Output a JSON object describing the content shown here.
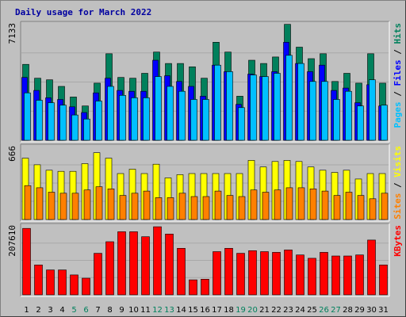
{
  "title": "Daily usage for March 2022",
  "colors": {
    "hits": "#00805c",
    "files": "#0000ff",
    "pages": "#00c0ff",
    "visits": "#ffff00",
    "sites": "#ff8000",
    "kbytes": "#ff0000",
    "weekend_label": "#00805c",
    "weekday_label": "#000000"
  },
  "chart_data": [
    {
      "type": "bar",
      "title": "Daily usage for March 2022",
      "ylabel": "7133",
      "ymax": 7133,
      "right_labels": [
        "Pages",
        "Files",
        "Hits"
      ],
      "categories": [
        "1",
        "2",
        "3",
        "4",
        "5",
        "6",
        "7",
        "8",
        "9",
        "10",
        "11",
        "12",
        "13",
        "14",
        "15",
        "16",
        "17",
        "18",
        "19",
        "20",
        "21",
        "22",
        "23",
        "24",
        "25",
        "26",
        "27",
        "28",
        "29",
        "30",
        "31"
      ],
      "weekend_days": [
        "5",
        "6",
        "12",
        "13",
        "19",
        "20",
        "26",
        "27"
      ],
      "series": [
        {
          "name": "Hits",
          "values": [
            4650,
            3800,
            3700,
            3300,
            2650,
            2100,
            3500,
            5300,
            3850,
            3800,
            4100,
            5400,
            4700,
            4700,
            4500,
            3800,
            6000,
            5400,
            2700,
            4900,
            4700,
            5100,
            7100,
            5700,
            5000,
            5300,
            3600,
            4100,
            3500,
            5300,
            3500
          ]
        },
        {
          "name": "Files",
          "values": [
            3850,
            3050,
            2600,
            2500,
            2050,
            1700,
            2900,
            3800,
            3050,
            3000,
            3000,
            4900,
            3950,
            3600,
            3300,
            2700,
            4600,
            4200,
            2200,
            4050,
            3900,
            4200,
            6000,
            4700,
            4200,
            4600,
            3050,
            3200,
            2300,
            3400,
            2100
          ]
        },
        {
          "name": "Pages",
          "values": [
            2900,
            2450,
            2300,
            2150,
            1550,
            1300,
            2400,
            3300,
            2750,
            2600,
            2600,
            3900,
            3300,
            3000,
            2500,
            2500,
            4600,
            4200,
            2000,
            4000,
            3900,
            4100,
            5200,
            4700,
            3600,
            3600,
            2500,
            3000,
            2100,
            3700,
            2150
          ]
        }
      ]
    },
    {
      "type": "bar",
      "ylabel": "666",
      "ymax": 666,
      "right_labels": [
        "Sites",
        "Visits"
      ],
      "categories": [
        "1",
        "2",
        "3",
        "4",
        "5",
        "6",
        "7",
        "8",
        "9",
        "10",
        "11",
        "12",
        "13",
        "14",
        "15",
        "16",
        "17",
        "18",
        "19",
        "20",
        "21",
        "22",
        "23",
        "24",
        "25",
        "26",
        "27",
        "28",
        "29",
        "30",
        "31"
      ],
      "series": [
        {
          "name": "Visits",
          "values": [
            560,
            500,
            450,
            440,
            440,
            510,
            610,
            560,
            420,
            460,
            420,
            505,
            380,
            410,
            420,
            420,
            420,
            420,
            420,
            540,
            480,
            530,
            540,
            530,
            480,
            450,
            430,
            450,
            370,
            420,
            420
          ]
        },
        {
          "name": "Sites",
          "values": [
            310,
            290,
            250,
            240,
            240,
            270,
            300,
            280,
            220,
            240,
            260,
            200,
            200,
            240,
            210,
            210,
            260,
            220,
            210,
            270,
            250,
            270,
            290,
            290,
            280,
            260,
            220,
            250,
            220,
            190,
            240
          ]
        }
      ]
    },
    {
      "type": "bar",
      "ylabel": "207610",
      "ymax": 207610,
      "right_labels": [
        "KBytes"
      ],
      "categories": [
        "1",
        "2",
        "3",
        "4",
        "5",
        "6",
        "7",
        "8",
        "9",
        "10",
        "11",
        "12",
        "13",
        "14",
        "15",
        "16",
        "17",
        "18",
        "19",
        "20",
        "21",
        "22",
        "23",
        "24",
        "25",
        "26",
        "27",
        "28",
        "29",
        "30",
        "31"
      ],
      "series": [
        {
          "name": "KBytes",
          "values": [
            200000,
            90000,
            75000,
            75000,
            60000,
            50000,
            125000,
            160000,
            190000,
            190000,
            175000,
            205000,
            183000,
            140000,
            45000,
            47000,
            130000,
            140000,
            125000,
            133000,
            130000,
            128000,
            135000,
            120000,
            110000,
            128000,
            117000,
            117000,
            120000,
            165000,
            90000
          ]
        }
      ]
    }
  ]
}
